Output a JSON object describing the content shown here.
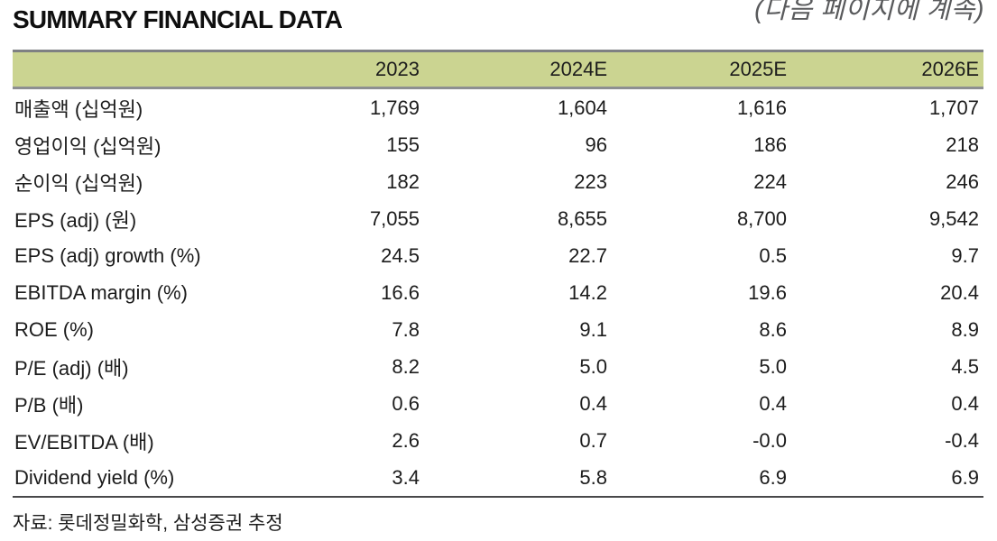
{
  "title": "SUMMARY FINANCIAL DATA",
  "continuation_note": "(다음 페이지에 계속)",
  "source_note": "자료: 롯데정밀화학, 삼성증권 추정",
  "colors": {
    "header_bg": "#cbd491",
    "header_border_gray": "#7f8183",
    "bottom_rule": "#48484a",
    "text": "#1c1c1c",
    "note_gray": "#595a5c"
  },
  "table": {
    "columns": [
      "",
      "2023",
      "2024E",
      "2025E",
      "2026E"
    ],
    "rows": [
      {
        "label": "매출액 (십억원)",
        "values": [
          "1,769",
          "1,604",
          "1,616",
          "1,707"
        ]
      },
      {
        "label": "영업이익 (십억원)",
        "values": [
          "155",
          "96",
          "186",
          "218"
        ]
      },
      {
        "label": "순이익 (십억원)",
        "values": [
          "182",
          "223",
          "224",
          "246"
        ]
      },
      {
        "label": "EPS (adj) (원)",
        "values": [
          "7,055",
          "8,655",
          "8,700",
          "9,542"
        ]
      },
      {
        "label": "EPS (adj) growth (%)",
        "values": [
          "24.5",
          "22.7",
          "0.5",
          "9.7"
        ]
      },
      {
        "label": "EBITDA margin (%)",
        "values": [
          "16.6",
          "14.2",
          "19.6",
          "20.4"
        ]
      },
      {
        "label": "ROE (%)",
        "values": [
          "7.8",
          "9.1",
          "8.6",
          "8.9"
        ]
      },
      {
        "label": "P/E (adj) (배)",
        "values": [
          "8.2",
          "5.0",
          "5.0",
          "4.5"
        ]
      },
      {
        "label": "P/B (배)",
        "values": [
          "0.6",
          "0.4",
          "0.4",
          "0.4"
        ]
      },
      {
        "label": "EV/EBITDA (배)",
        "values": [
          "2.6",
          "0.7",
          "-0.0",
          "-0.4"
        ]
      },
      {
        "label": "Dividend yield (%)",
        "values": [
          "3.4",
          "5.8",
          "6.9",
          "6.9"
        ]
      }
    ]
  }
}
